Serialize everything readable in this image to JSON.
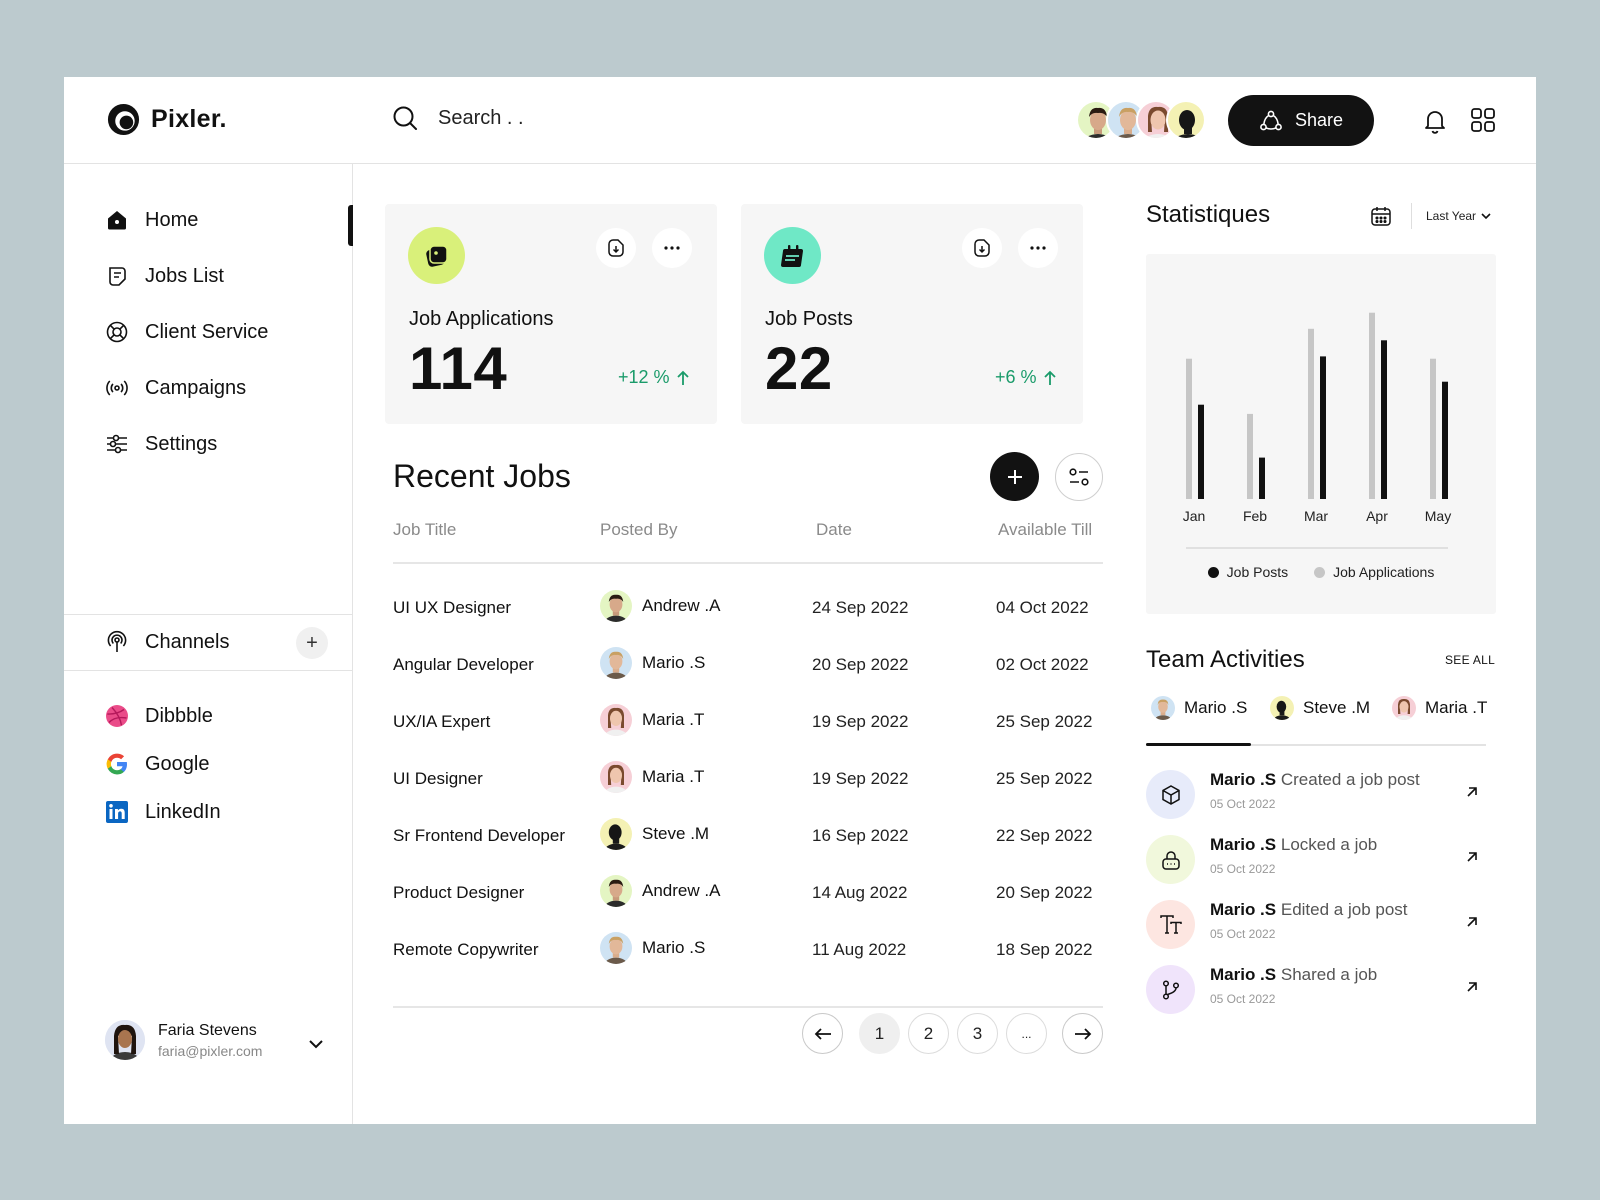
{
  "brand": {
    "name": "Pixler."
  },
  "search": {
    "placeholder": "Search . ."
  },
  "header": {
    "share_label": "Share",
    "collaborators": [
      "Andrew .A",
      "Mario .S",
      "Maria .T",
      "Steve .M"
    ]
  },
  "nav": {
    "items": [
      {
        "label": "Home",
        "icon": "home-icon",
        "active": true
      },
      {
        "label": "Jobs List",
        "icon": "jobs-list-icon"
      },
      {
        "label": "Client Service",
        "icon": "lifebuoy-icon"
      },
      {
        "label": "Campaigns",
        "icon": "broadcast-icon"
      },
      {
        "label": "Settings",
        "icon": "sliders-icon"
      }
    ]
  },
  "channels": {
    "label": "Channels",
    "items": [
      {
        "label": "Dibbble",
        "icon": "dribbble-icon"
      },
      {
        "label": "Google",
        "icon": "google-icon"
      },
      {
        "label": "LinkedIn",
        "icon": "linkedin-icon"
      }
    ]
  },
  "user": {
    "name": "Faria Stevens",
    "email": "faria@pixler.com"
  },
  "cards": [
    {
      "label": "Job Applications",
      "value": "114",
      "change": "+12 %",
      "icon_color": "#d9f07a"
    },
    {
      "label": "Job Posts",
      "value": "22",
      "change": "+6 %",
      "icon_color": "#6fe8c6"
    }
  ],
  "recent_jobs": {
    "title": "Recent Jobs",
    "columns": [
      "Job Title",
      "Posted By",
      "Date",
      "Available Till"
    ],
    "rows": [
      {
        "title": "UI UX Designer",
        "by": "Andrew .A",
        "date": "24 Sep 2022",
        "till": "04 Oct 2022"
      },
      {
        "title": "Angular Developer",
        "by": "Mario .S",
        "date": "20 Sep 2022",
        "till": "02 Oct 2022"
      },
      {
        "title": "UX/IA Expert",
        "by": "Maria .T",
        "date": "19 Sep 2022",
        "till": "25 Sep 2022"
      },
      {
        "title": "UI Designer",
        "by": "Maria .T",
        "date": "19 Sep 2022",
        "till": "25 Sep 2022"
      },
      {
        "title": "Sr Frontend Developer",
        "by": "Steve .M",
        "date": "16 Sep 2022",
        "till": "22 Sep 2022"
      },
      {
        "title": "Product Designer",
        "by": "Andrew .A",
        "date": "14 Aug 2022",
        "till": "20 Sep 2022"
      },
      {
        "title": "Remote Copywriter",
        "by": "Mario .S",
        "date": "11 Aug 2022",
        "till": "18 Sep 2022"
      }
    ],
    "pagination": {
      "pages": [
        "1",
        "2",
        "3",
        "..."
      ],
      "current": "1"
    }
  },
  "stats": {
    "title": "Statistiques",
    "range": "Last Year",
    "colors": {
      "job_posts": "#111111",
      "job_applications": "#c6c6c6"
    }
  },
  "chart_data": {
    "type": "bar",
    "categories": [
      "Jan",
      "Feb",
      "Mar",
      "Apr",
      "May"
    ],
    "series": [
      {
        "name": "Job Applications",
        "values": [
          61,
          37,
          74,
          81,
          61
        ]
      },
      {
        "name": "Job Posts",
        "values": [
          41,
          18,
          62,
          69,
          51
        ]
      }
    ],
    "ylim": [
      0,
      100
    ],
    "legend": "bottom"
  },
  "team": {
    "title": "Team Activities",
    "see_all": "SEE ALL",
    "tabs": [
      "Mario .S",
      "Steve .M",
      "Maria .T"
    ],
    "activities": [
      {
        "name": "Mario .S",
        "action": "Created a job post",
        "date": "05 Oct 2022",
        "icon": "cube-icon",
        "bg": "#e7ebfa"
      },
      {
        "name": "Mario .S",
        "action": "Locked a job",
        "date": "05 Oct 2022",
        "icon": "lock-icon",
        "bg": "#f1f8dc"
      },
      {
        "name": "Mario .S",
        "action": "Edited a job post",
        "date": "05 Oct 2022",
        "icon": "text-icon",
        "bg": "#fde6e1"
      },
      {
        "name": "Mario .S",
        "action": "Shared a job",
        "date": "05 Oct 2022",
        "icon": "branch-icon",
        "bg": "#f0e4fb"
      }
    ]
  }
}
